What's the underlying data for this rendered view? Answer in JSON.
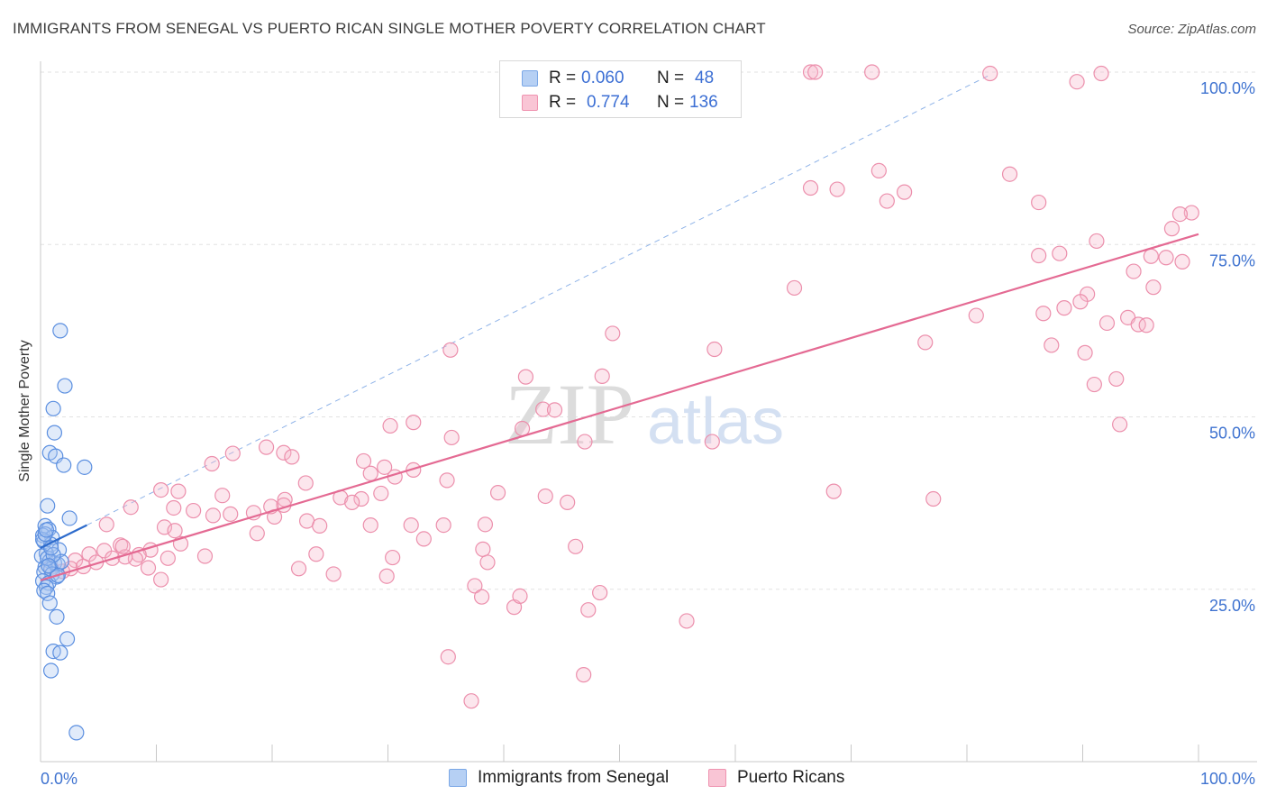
{
  "title": "IMMIGRANTS FROM SENEGAL VS PUERTO RICAN SINGLE MOTHER POVERTY CORRELATION CHART",
  "source": "Source: ZipAtlas.com",
  "watermark": {
    "zip": "ZIP",
    "atlas": "atlas"
  },
  "colors": {
    "blue": "#5b8fe0",
    "pink": "#ec8fac",
    "blue_line": "#2d6bcc",
    "pink_line": "#e46a93",
    "axis_text": "#3f73d0"
  },
  "legend": {
    "rows": [
      {
        "r_label": "R =",
        "r_value": "0.060",
        "n_label": "N =",
        "n_value": "48"
      },
      {
        "r_label": "R =",
        "r_value": "0.774",
        "n_label": "N =",
        "n_value": "136"
      }
    ]
  },
  "bottom_legend": {
    "series1": "Immigrants from Senegal",
    "series2": "Puerto Ricans"
  },
  "chart_data": {
    "type": "scatter",
    "title": "IMMIGRANTS FROM SENEGAL VS PUERTO RICAN SINGLE MOTHER POVERTY CORRELATION CHART",
    "xlabel": "",
    "ylabel": "Single Mother Poverty",
    "xlim": [
      0,
      100
    ],
    "ylim": [
      0,
      100
    ],
    "x_tick_labels": [
      "0.0%",
      "100.0%"
    ],
    "y_tick_labels": [
      "25.0%",
      "50.0%",
      "75.0%",
      "100.0%"
    ],
    "y_ticks": [
      25,
      50,
      75,
      100
    ],
    "series": [
      {
        "name": "Immigrants from Senegal",
        "color": "#5b8fe0",
        "trend": {
          "x0": 0,
          "y0": 31.0,
          "x1": 4.0,
          "y1": 34.3
        },
        "dashed_extension": {
          "x0": 4.0,
          "y0": 34.3,
          "x1": 82,
          "y1": 99.6
        },
        "points": [
          [
            1.7,
            62.5
          ],
          [
            2.1,
            54.5
          ],
          [
            1.1,
            51.2
          ],
          [
            1.2,
            47.7
          ],
          [
            0.8,
            44.8
          ],
          [
            1.3,
            44.3
          ],
          [
            2.0,
            43.0
          ],
          [
            3.8,
            42.7
          ],
          [
            0.6,
            37.1
          ],
          [
            2.5,
            35.3
          ],
          [
            0.4,
            34.2
          ],
          [
            0.7,
            33.7
          ],
          [
            0.2,
            32.8
          ],
          [
            1.0,
            32.5
          ],
          [
            0.3,
            31.9
          ],
          [
            0.9,
            31.5
          ],
          [
            1.6,
            30.7
          ],
          [
            0.5,
            30.2
          ],
          [
            0.1,
            29.8
          ],
          [
            0.8,
            29.1
          ],
          [
            1.2,
            28.8
          ],
          [
            1.5,
            28.6
          ],
          [
            0.4,
            28.2
          ],
          [
            0.9,
            27.9
          ],
          [
            0.3,
            27.5
          ],
          [
            1.0,
            27.2
          ],
          [
            1.4,
            26.8
          ],
          [
            0.2,
            26.2
          ],
          [
            0.7,
            25.9
          ],
          [
            0.5,
            25.3
          ],
          [
            0.3,
            24.8
          ],
          [
            0.6,
            24.4
          ],
          [
            0.8,
            23.0
          ],
          [
            1.4,
            21.0
          ],
          [
            2.3,
            17.8
          ],
          [
            1.1,
            16.0
          ],
          [
            1.7,
            15.8
          ],
          [
            0.9,
            13.2
          ],
          [
            3.1,
            4.2
          ],
          [
            0.6,
            29.5
          ],
          [
            1.8,
            29.0
          ],
          [
            0.2,
            32.2
          ],
          [
            1.1,
            30.0
          ],
          [
            0.4,
            33.0
          ],
          [
            1.5,
            27.0
          ],
          [
            0.7,
            28.4
          ],
          [
            0.9,
            31.0
          ],
          [
            0.5,
            33.6
          ]
        ]
      },
      {
        "name": "Puerto Ricans",
        "color": "#ec8fac",
        "trend": {
          "x0": 0,
          "y0": 26.3,
          "x1": 100,
          "y1": 76.5
        },
        "points": [
          [
            66.5,
            100
          ],
          [
            66.9,
            100
          ],
          [
            71.8,
            100
          ],
          [
            82.0,
            99.8
          ],
          [
            91.6,
            99.8
          ],
          [
            89.5,
            98.6
          ],
          [
            72.4,
            85.7
          ],
          [
            83.7,
            85.2
          ],
          [
            66.5,
            83.2
          ],
          [
            68.8,
            83.0
          ],
          [
            74.6,
            82.6
          ],
          [
            73.1,
            81.3
          ],
          [
            86.2,
            81.1
          ],
          [
            99.4,
            79.6
          ],
          [
            98.4,
            79.4
          ],
          [
            97.7,
            77.3
          ],
          [
            91.2,
            75.5
          ],
          [
            86.2,
            73.4
          ],
          [
            88.0,
            73.7
          ],
          [
            97.2,
            73.1
          ],
          [
            95.9,
            73.3
          ],
          [
            98.6,
            72.5
          ],
          [
            94.4,
            71.1
          ],
          [
            65.1,
            68.7
          ],
          [
            96.1,
            68.8
          ],
          [
            90.4,
            67.8
          ],
          [
            89.8,
            66.7
          ],
          [
            88.4,
            65.8
          ],
          [
            86.6,
            65.0
          ],
          [
            80.8,
            64.7
          ],
          [
            93.9,
            64.4
          ],
          [
            92.1,
            63.6
          ],
          [
            94.8,
            63.4
          ],
          [
            95.5,
            63.3
          ],
          [
            49.4,
            62.1
          ],
          [
            76.4,
            60.8
          ],
          [
            87.3,
            60.4
          ],
          [
            58.2,
            59.8
          ],
          [
            35.4,
            59.7
          ],
          [
            90.2,
            59.3
          ],
          [
            48.5,
            55.9
          ],
          [
            41.9,
            55.8
          ],
          [
            92.9,
            55.5
          ],
          [
            91.0,
            54.7
          ],
          [
            43.4,
            51.1
          ],
          [
            44.4,
            51.0
          ],
          [
            32.2,
            49.2
          ],
          [
            30.2,
            48.7
          ],
          [
            41.6,
            48.3
          ],
          [
            93.2,
            48.9
          ],
          [
            47.0,
            46.4
          ],
          [
            58.0,
            46.4
          ],
          [
            19.5,
            45.6
          ],
          [
            16.6,
            44.7
          ],
          [
            21.0,
            44.8
          ],
          [
            21.7,
            44.2
          ],
          [
            27.9,
            43.6
          ],
          [
            29.7,
            42.7
          ],
          [
            28.5,
            41.8
          ],
          [
            14.8,
            43.2
          ],
          [
            32.2,
            42.3
          ],
          [
            30.6,
            41.3
          ],
          [
            35.1,
            40.8
          ],
          [
            22.9,
            40.4
          ],
          [
            10.4,
            39.4
          ],
          [
            11.9,
            39.2
          ],
          [
            68.5,
            39.2
          ],
          [
            29.4,
            38.9
          ],
          [
            39.5,
            39.0
          ],
          [
            43.6,
            38.5
          ],
          [
            15.7,
            38.6
          ],
          [
            21.1,
            38.0
          ],
          [
            25.9,
            38.3
          ],
          [
            27.7,
            38.1
          ],
          [
            45.5,
            37.6
          ],
          [
            77.1,
            38.1
          ],
          [
            26.9,
            37.6
          ],
          [
            21.0,
            37.2
          ],
          [
            11.5,
            36.8
          ],
          [
            13.2,
            36.4
          ],
          [
            7.8,
            36.9
          ],
          [
            18.4,
            36.1
          ],
          [
            14.9,
            35.7
          ],
          [
            16.4,
            35.9
          ],
          [
            23.0,
            34.9
          ],
          [
            20.2,
            35.5
          ],
          [
            5.7,
            34.4
          ],
          [
            24.1,
            34.2
          ],
          [
            32.0,
            34.3
          ],
          [
            28.5,
            34.3
          ],
          [
            10.7,
            34.0
          ],
          [
            33.1,
            32.3
          ],
          [
            12.1,
            31.6
          ],
          [
            38.4,
            34.4
          ],
          [
            34.8,
            34.3
          ],
          [
            46.2,
            31.2
          ],
          [
            38.2,
            30.8
          ],
          [
            18.7,
            33.1
          ],
          [
            6.9,
            31.4
          ],
          [
            9.5,
            30.7
          ],
          [
            8.5,
            30.0
          ],
          [
            4.2,
            30.1
          ],
          [
            5.5,
            30.6
          ],
          [
            6.2,
            29.5
          ],
          [
            8.2,
            29.4
          ],
          [
            3.0,
            29.2
          ],
          [
            11.0,
            29.5
          ],
          [
            4.8,
            28.9
          ],
          [
            7.3,
            29.7
          ],
          [
            2.6,
            28.0
          ],
          [
            9.3,
            28.1
          ],
          [
            3.7,
            28.3
          ],
          [
            1.9,
            27.6
          ],
          [
            0.9,
            28.2
          ],
          [
            22.3,
            28.0
          ],
          [
            25.3,
            27.2
          ],
          [
            29.9,
            26.9
          ],
          [
            10.4,
            26.4
          ],
          [
            30.4,
            29.6
          ],
          [
            38.6,
            28.9
          ],
          [
            37.5,
            25.5
          ],
          [
            48.3,
            24.5
          ],
          [
            38.1,
            23.9
          ],
          [
            40.9,
            22.4
          ],
          [
            47.3,
            22.0
          ],
          [
            55.8,
            20.4
          ],
          [
            35.2,
            15.2
          ],
          [
            46.9,
            12.6
          ],
          [
            37.2,
            8.8
          ],
          [
            41.4,
            24.0
          ],
          [
            14.2,
            29.8
          ],
          [
            19.9,
            37.0
          ],
          [
            35.5,
            47.0
          ],
          [
            11.6,
            33.5
          ],
          [
            7.1,
            31.2
          ],
          [
            23.8,
            30.1
          ]
        ]
      }
    ]
  }
}
